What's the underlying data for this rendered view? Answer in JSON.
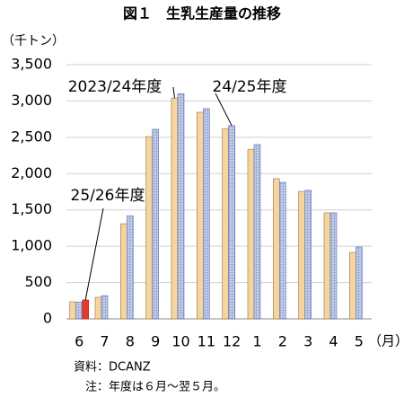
{
  "chart_data": {
    "type": "bar",
    "title": "図１　生乳生産量の推移",
    "y_label": "（千トン）",
    "x_label": "（月）",
    "categories": [
      "6",
      "7",
      "8",
      "9",
      "10",
      "11",
      "12",
      "1",
      "2",
      "3",
      "4",
      "5"
    ],
    "series": [
      {
        "name": "2023/24年度",
        "color": "#f6d49c",
        "values": [
          235,
          297,
          1310,
          2510,
          3040,
          2845,
          2620,
          2335,
          1930,
          1755,
          1460,
          915
        ]
      },
      {
        "name": "24/25年度",
        "color": "#c6d0ea",
        "values": [
          230,
          320,
          1420,
          2610,
          3100,
          2895,
          2660,
          2400,
          1880,
          1770,
          1460,
          990
        ]
      },
      {
        "name": "25/26年度",
        "color": "#e63b2a",
        "values": [
          260,
          null,
          null,
          null,
          null,
          null,
          null,
          null,
          null,
          null,
          null,
          null
        ]
      }
    ],
    "ylim": [
      0,
      3500
    ],
    "yticks": [
      0,
      500,
      {
        "value": 1000,
        "label": "1,000"
      },
      {
        "value": 1500,
        "label": "1,500"
      },
      {
        "value": 2000,
        "label": "2,000"
      },
      {
        "value": 2500,
        "label": "2,500"
      },
      {
        "value": 3000,
        "label": "3,000"
      },
      {
        "value": 3500,
        "label": "3,500"
      }
    ],
    "grid": true,
    "source": "資料：DCANZ",
    "note": "注：年度は６月～翌５月。"
  }
}
